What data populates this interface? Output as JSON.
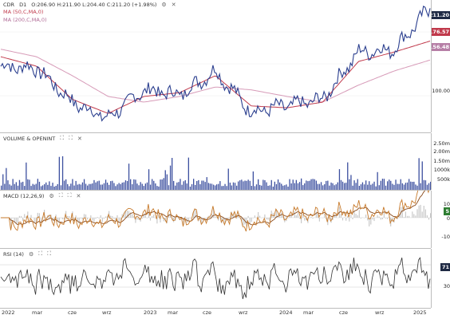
{
  "price_pane": {
    "symbol": "CDR",
    "interval": "D1",
    "ohlc": "O:206.90 H:211.90 L:204.40 C:211.20 (+1.98%)",
    "ma50_label": "MA (50,C,MA,0)",
    "ma200_label": "MA (200,C,MA,0)",
    "last_price": "211.20",
    "ma50_value": "176.57",
    "ma200_value": "156.48",
    "axis_label": "100.00",
    "colors": {
      "price": "#2b3f8f",
      "ma50": "#c0394b",
      "ma200": "#d79bb8",
      "last_tag": "#1f2a44"
    }
  },
  "volume_pane": {
    "title": "VOLUME & OPENINT",
    "axis_labels": [
      "2.50m",
      "2.00m",
      "1.50m",
      "1000k",
      "500k"
    ],
    "color": "#3c4f9f"
  },
  "macd_pane": {
    "title": "MACD (12,26,9)",
    "axis_labels": [
      "10",
      "0",
      "-10"
    ],
    "tag_value": "5",
    "colors": {
      "macd": "#c77a2b",
      "signal": "#8a4a1a",
      "hist": "#c9c9c9",
      "tag": "#2e7d32"
    }
  },
  "rsi_pane": {
    "title": "RSI (14)",
    "axis_labels": [
      "70",
      "30"
    ],
    "tag_value": "71",
    "color": "#333333"
  },
  "x_axis": [
    "2022",
    "mar",
    "cze",
    "wrz",
    "2023",
    "mar",
    "cze",
    "wrz",
    "2024",
    "mar",
    "cze",
    "wrz",
    "2025"
  ],
  "chart_data": {
    "type": "line",
    "title": "CDR D1",
    "x": [
      "2022",
      "mar",
      "cze",
      "wrz",
      "2023",
      "mar",
      "cze",
      "wrz",
      "2024",
      "mar",
      "cze",
      "wrz",
      "2025"
    ],
    "series": [
      {
        "name": "CDR",
        "values": [
          150,
          148,
          112,
          95,
          125,
          120,
          145,
          102,
          108,
          115,
          165,
          168,
          211.2
        ]
      },
      {
        "name": "MA (50,C,MA,0)",
        "values": [
          160,
          150,
          115,
          100,
          118,
          122,
          140,
          108,
          106,
          112,
          155,
          165,
          176.57
        ]
      },
      {
        "name": "MA (200,C,MA,0)",
        "values": [
          168,
          160,
          140,
          118,
          112,
          118,
          128,
          125,
          118,
          112,
          130,
          145,
          156.48
        ]
      }
    ]
  }
}
